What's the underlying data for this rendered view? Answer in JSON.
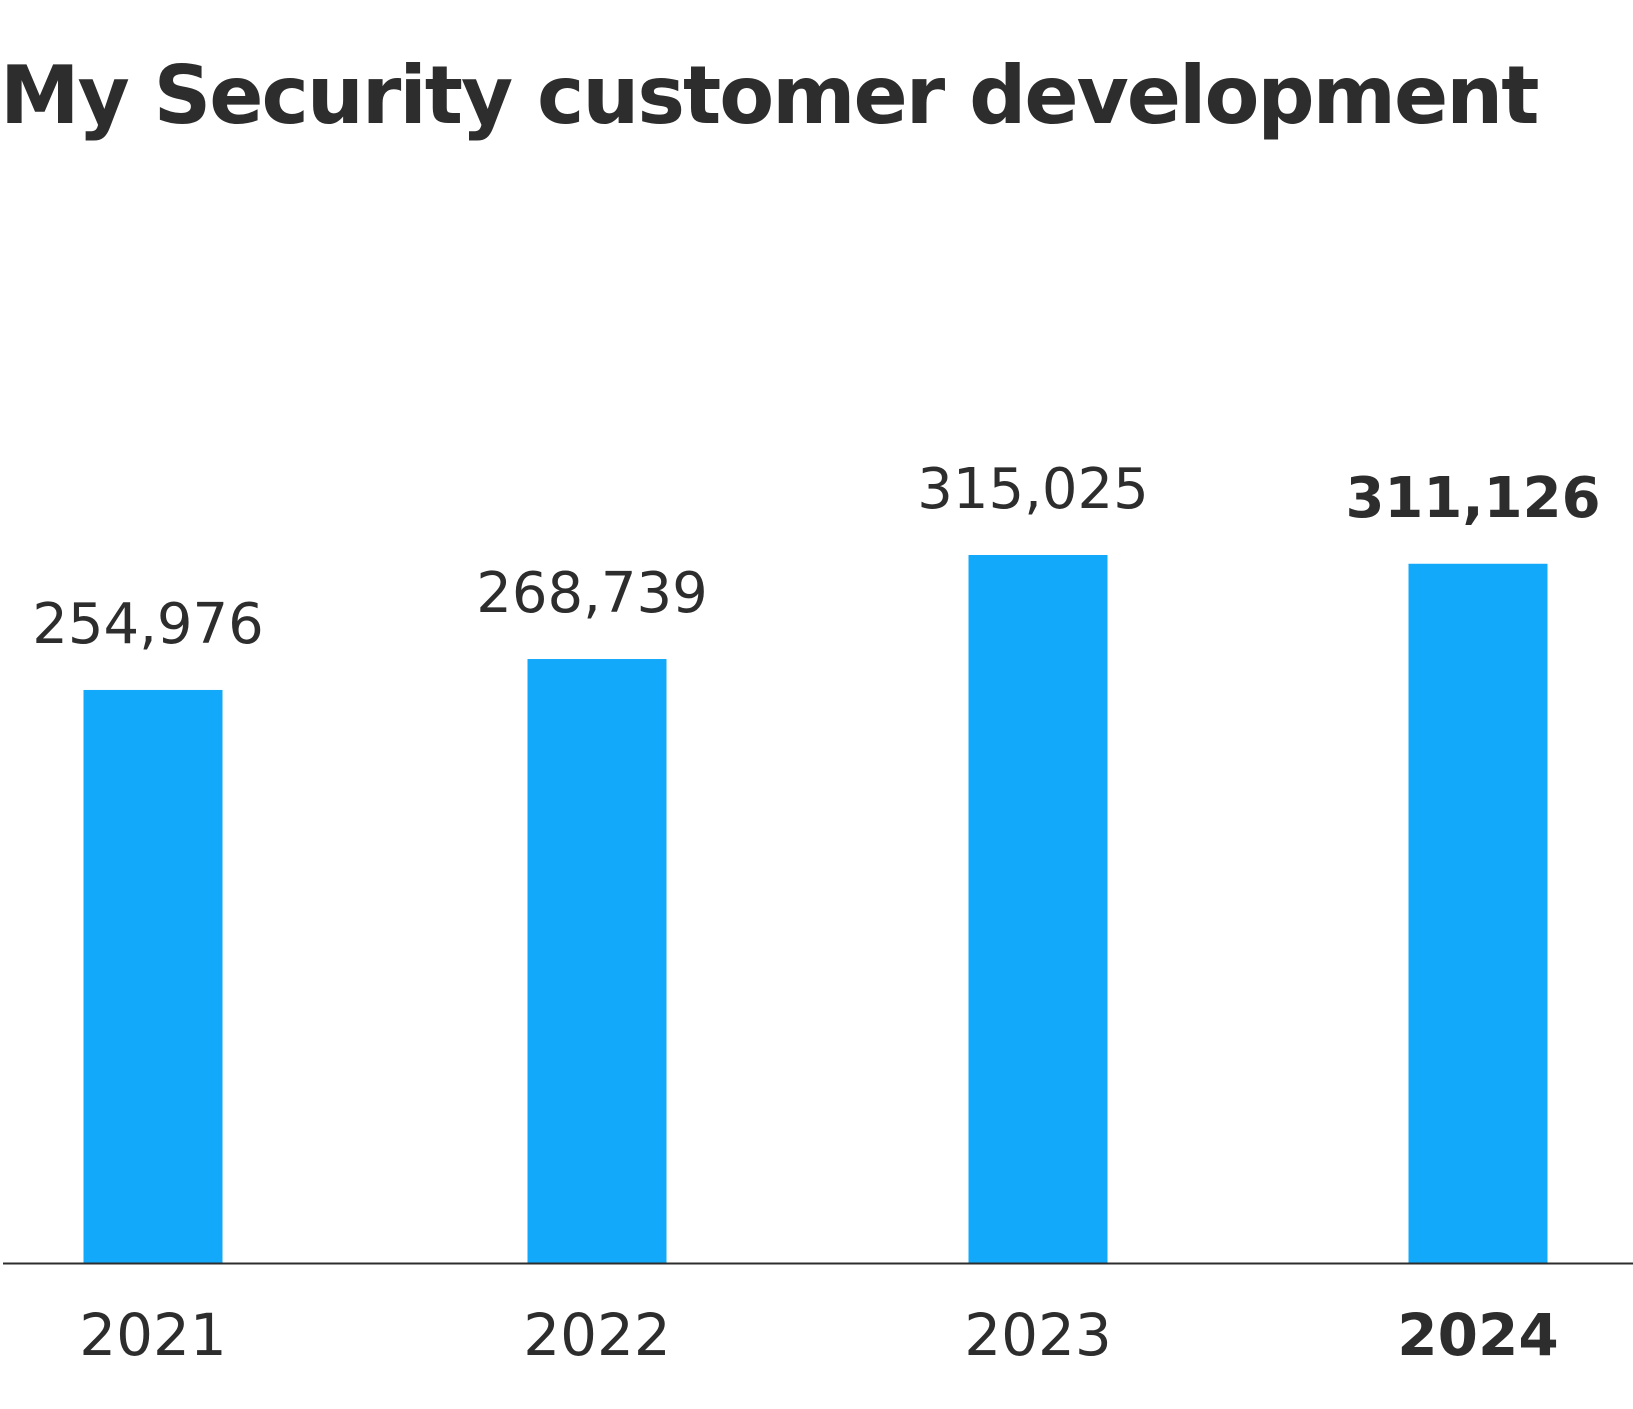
{
  "colors": {
    "bar": "#13a9fb",
    "text": "#2d2d2d",
    "axis": "#2d2d2d"
  },
  "chart_data": {
    "type": "bar",
    "title": "My Security customer development",
    "categories": [
      "2021",
      "2022",
      "2023",
      "2024"
    ],
    "values": [
      254976,
      268739,
      315025,
      311126
    ],
    "value_labels": [
      "254,976",
      "268,739",
      "315,025",
      "311,126"
    ],
    "highlighted_category": "2024",
    "ylim": [
      0,
      320000
    ],
    "grid": false,
    "legend": "none"
  }
}
